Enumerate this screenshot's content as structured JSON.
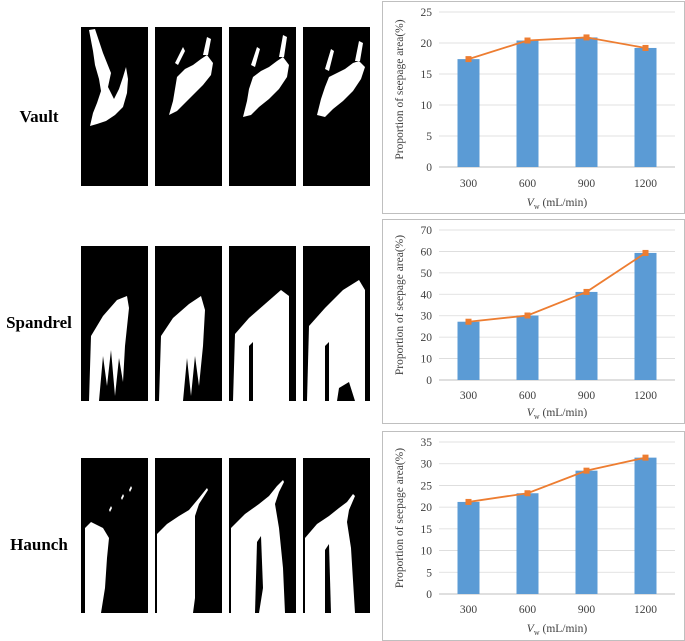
{
  "rows": [
    {
      "label": "Vault"
    },
    {
      "label": "Spandrel"
    },
    {
      "label": "Haunch"
    }
  ],
  "xlabel": {
    "symbol": "V",
    "subscript": "w",
    "unit": " (mL/min)"
  },
  "colors": {
    "bar": "#5b9bd5",
    "line": "#ed7d31",
    "grid": "#d9d9d9",
    "axis": "#bfbfbf"
  },
  "chart_data": [
    {
      "type": "bar",
      "categories": [
        "300",
        "600",
        "900",
        "1200"
      ],
      "series": [
        {
          "type": "bar",
          "values": [
            17.4,
            20.4,
            20.9,
            19.2
          ]
        },
        {
          "type": "line",
          "values": [
            17.4,
            20.4,
            20.9,
            19.2
          ]
        }
      ],
      "ylabel": "Proportion of seepage area(%)",
      "ylim": [
        0,
        25
      ],
      "yticks": [
        0,
        5,
        10,
        15,
        20,
        25
      ],
      "grid": true
    },
    {
      "type": "bar",
      "categories": [
        "300",
        "600",
        "900",
        "1200"
      ],
      "series": [
        {
          "type": "bar",
          "values": [
            27.2,
            30.1,
            41.1,
            59.3
          ]
        },
        {
          "type": "line",
          "values": [
            27.2,
            30.1,
            41.1,
            59.3
          ]
        }
      ],
      "ylabel": "Proportion of seepage area(%)",
      "ylim": [
        0,
        70
      ],
      "yticks": [
        0,
        10,
        20,
        30,
        40,
        50,
        60,
        70
      ],
      "grid": true
    },
    {
      "type": "bar",
      "categories": [
        "300",
        "600",
        "900",
        "1200"
      ],
      "series": [
        {
          "type": "bar",
          "values": [
            21.2,
            23.2,
            28.4,
            31.4
          ]
        },
        {
          "type": "line",
          "values": [
            21.2,
            23.2,
            28.4,
            31.4
          ]
        }
      ],
      "ylabel": "Proportion of seepage area(%)",
      "ylim": [
        0,
        35
      ],
      "yticks": [
        0,
        5,
        10,
        15,
        20,
        25,
        30,
        35
      ],
      "grid": true
    }
  ]
}
